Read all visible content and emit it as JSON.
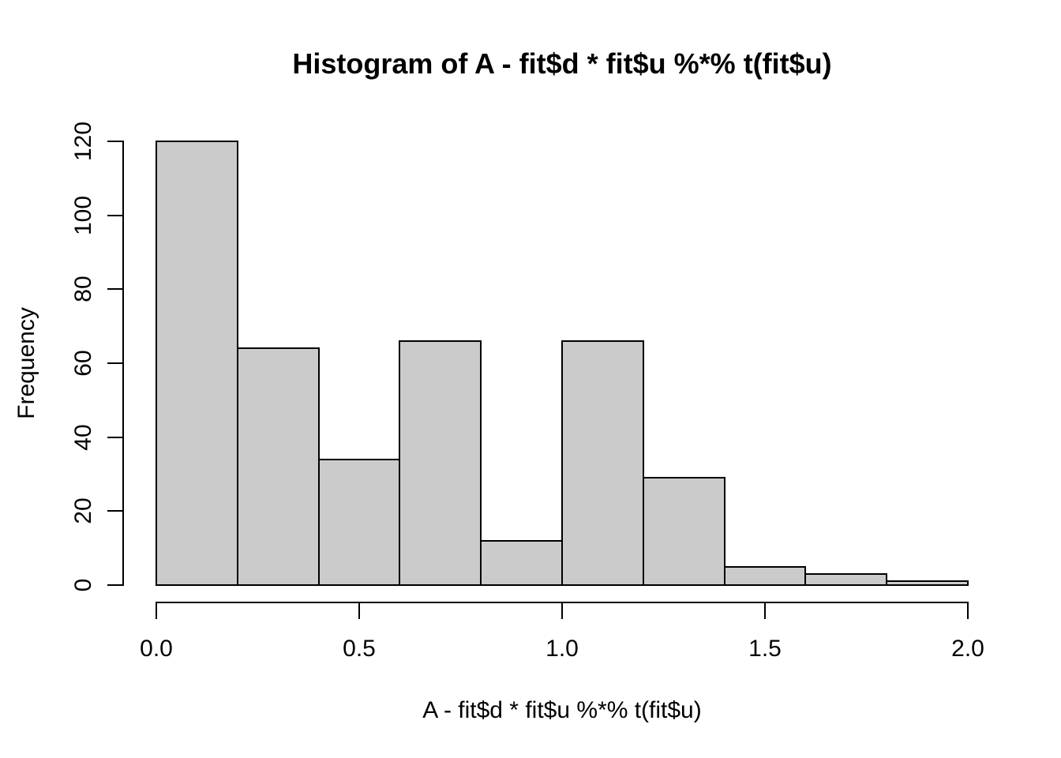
{
  "chart_data": {
    "type": "bar",
    "subtype": "histogram",
    "title": "Histogram of A - fit$d * fit$u %*% t(fit$u)",
    "xlabel": "A - fit$d * fit$u %*% t(fit$u)",
    "ylabel": "Frequency",
    "bin_edges": [
      0.0,
      0.2,
      0.4,
      0.6,
      0.8,
      1.0,
      1.2,
      1.4,
      1.6,
      1.8,
      2.0
    ],
    "values": [
      120,
      64,
      34,
      66,
      12,
      66,
      29,
      5,
      3,
      1
    ],
    "x_tick_values": [
      0.0,
      0.5,
      1.0,
      1.5,
      2.0
    ],
    "x_tick_labels": [
      "0.0",
      "0.5",
      "1.0",
      "1.5",
      "2.0"
    ],
    "y_tick_values": [
      0,
      20,
      40,
      60,
      80,
      100,
      120
    ],
    "y_tick_labels": [
      "0",
      "20",
      "40",
      "60",
      "80",
      "100",
      "120"
    ],
    "xlim": [
      0.0,
      2.0
    ],
    "ylim": [
      0,
      120
    ],
    "grid": false,
    "legend": "none",
    "bar_fill_color": "#CBCBCB",
    "bar_border_color": "#000000",
    "axis_color": "#000000",
    "background_color": "#FFFFFF"
  }
}
